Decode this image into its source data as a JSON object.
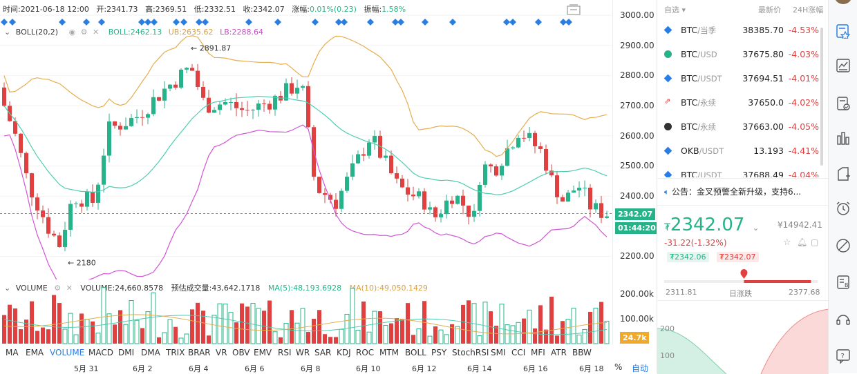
{
  "info_bar": {
    "time_label": "时间:",
    "time": "2021-06-18 12:00",
    "open_label": "开:",
    "open": "2341.73",
    "high_label": "高:",
    "high": "2369.51",
    "low_label": "低:",
    "low": "2332.51",
    "close_label": "收:",
    "close": "2342.07",
    "change_label": "涨幅:",
    "change": "0.01%(0.23)",
    "amplitude_label": "振幅:",
    "amplitude": "1.58%"
  },
  "boll": {
    "name": "BOLL(20,2)",
    "mid_label": "BOLL:",
    "mid": "2462.13",
    "ub_label": "UB:",
    "ub": "2635.62",
    "lb_label": "LB:",
    "lb": "2288.64",
    "high_marker": "2891.87",
    "low_marker": "2180"
  },
  "volume": {
    "name": "VOLUME",
    "vol_label": "VOLUME:",
    "vol": "24,660.8578",
    "est_label": "预估成交量:",
    "est": "43,642.1718",
    "ma5_label": "MA(5):",
    "ma5": "48,193.6928",
    "ma10_label": "MA(10):",
    "ma10": "49,050.1429",
    "current_tag": "24.7k"
  },
  "price_axis": [
    "3000.00",
    "2900.00",
    "2800.00",
    "2700.00",
    "2600.00",
    "2500.00",
    "2400.00",
    "2300.00",
    "2200.00"
  ],
  "volume_axis": [
    "200.00k",
    "100.00k"
  ],
  "current_price_tag": "2342.07",
  "countdown_tag": "01:44:20",
  "indicators": [
    "MA",
    "EMA",
    "VOLUME",
    "MACD",
    "DMI",
    "DMA",
    "TRIX",
    "BRAR",
    "VR",
    "OBV",
    "EMV",
    "RSI",
    "WR",
    "SAR",
    "KDJ",
    "ROC",
    "MTM",
    "BOLL",
    "PSY",
    "StochRSI",
    "SMI",
    "CCI",
    "MFI",
    "ATR",
    "BBW"
  ],
  "active_indicator": "VOLUME",
  "dates": [
    "5月 31",
    "6月 2",
    "6月 4",
    "6月 6",
    "6月 8",
    "6月 10",
    "6月 12",
    "6月 14",
    "6月 16",
    "6月 18"
  ],
  "bottom_right": {
    "percent": "%",
    "auto": "自动"
  },
  "watchlist": {
    "header_filter": "自选",
    "header_price": "最新价",
    "header_change": "24H涨幅",
    "rows": [
      {
        "base": "BTC",
        "quote": "/当季",
        "price": "38385.70",
        "change": "-4.53%",
        "icon": "diamond-icon"
      },
      {
        "base": "BTC",
        "quote": "/USD",
        "price": "37675.80",
        "change": "-4.03%",
        "icon": "bitcoin-icon"
      },
      {
        "base": "BTC",
        "quote": "/USDT",
        "price": "37694.51",
        "change": "-4.01%",
        "icon": "diamond-icon"
      },
      {
        "base": "BTC",
        "quote": "/永续",
        "price": "37650.0",
        "change": "-4.02%",
        "icon": "swap-icon"
      },
      {
        "base": "BTC",
        "quote": "/永续",
        "price": "37663.00",
        "change": "-4.05%",
        "icon": "coin-icon"
      },
      {
        "base": "OKB",
        "quote": "/USDT",
        "price": "13.193",
        "change": "-4.41%",
        "icon": "diamond-icon"
      },
      {
        "base": "BTC",
        "quote": "/USDT",
        "price": "37688.49",
        "change": "-4.04%",
        "icon": "diamond-icon"
      }
    ]
  },
  "notice": {
    "label": "公告：金叉预警全新升级，支持6..."
  },
  "ticker": {
    "currency_symbol": "₮",
    "price": "2342.07",
    "volume_24h": "¥14942.41",
    "change": "-31.22(-1.32%)",
    "bid": "₮2342.06",
    "ask": "₮2342.07",
    "range_low": "2311.81",
    "range_label": "日涨跌",
    "range_high": "2377.68",
    "range_position": 0.52
  },
  "depth_axis": [
    "200",
    "100"
  ],
  "colors": {
    "up": "#27b38a",
    "down": "#e0403f",
    "ub": "#e5ad4c",
    "lb": "#d154d4",
    "mid": "#4ccdb0",
    "accent": "#2a7de1"
  }
}
